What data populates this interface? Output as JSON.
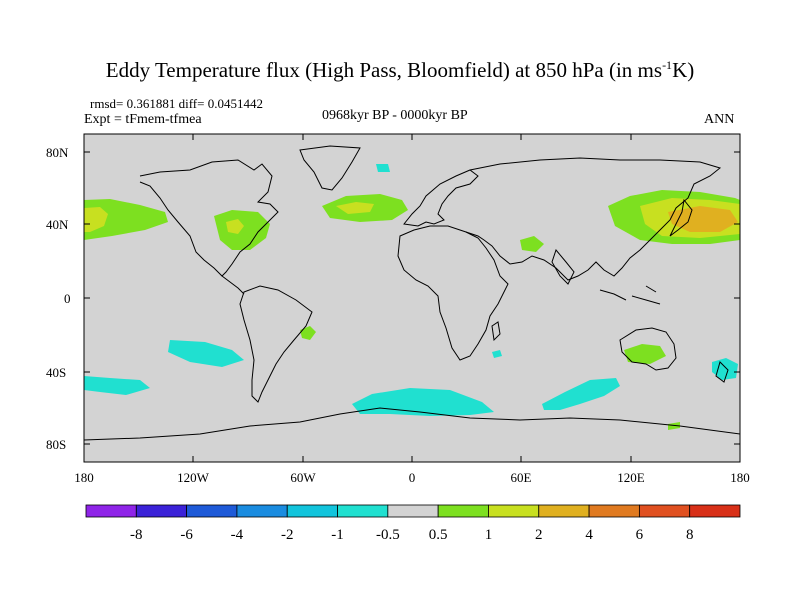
{
  "header": {
    "title_main": "Eddy Temperature flux (High Pass, Bloomfield) at 850 hPa (in ms",
    "title_sup": "-1",
    "title_end": "K)",
    "stats": "rmsd= 0.361881 diff= 0.0451442",
    "expt": "Expt = tFmem-tfmea",
    "period": "0968kyr BP - 0000kyr BP",
    "season": "ANN"
  },
  "map": {
    "land_color": "#d3d3d3",
    "coast_color": "#000000",
    "lat_ticks": [
      "80N",
      "40N",
      "0",
      "40S",
      "80S"
    ],
    "lon_ticks": [
      "180",
      "120W",
      "60W",
      "0",
      "60E",
      "120E",
      "180"
    ],
    "anomaly_regions": [
      {
        "name": "north-pacific-east",
        "level": "1"
      },
      {
        "name": "north-pacific-east-core",
        "level": "2"
      },
      {
        "name": "north-america-east",
        "level": "1"
      },
      {
        "name": "north-america-core",
        "level": "2"
      },
      {
        "name": "north-atlantic",
        "level": "1"
      },
      {
        "name": "north-atlantic-core",
        "level": "2"
      },
      {
        "name": "north-pacific-west",
        "level": "1"
      },
      {
        "name": "north-pacific-west-core",
        "level": "2"
      },
      {
        "name": "north-pacific-west-center",
        "level": "4"
      },
      {
        "name": "middle-east",
        "level": "1"
      },
      {
        "name": "greenland-sea",
        "level": "-1"
      },
      {
        "name": "south-pacific",
        "level": "-1"
      },
      {
        "name": "south-pacific-west",
        "level": "-1"
      },
      {
        "name": "south-atlantic",
        "level": "1"
      },
      {
        "name": "southern-ocean-atlantic",
        "level": "-1"
      },
      {
        "name": "southern-ocean-indian",
        "level": "-1"
      },
      {
        "name": "australia",
        "level": "1"
      },
      {
        "name": "madagascar-east",
        "level": "-1"
      },
      {
        "name": "tasman-sea",
        "level": "-1"
      },
      {
        "name": "antarctic-coast",
        "level": "1"
      }
    ]
  },
  "colorbar": {
    "labels": [
      "-8",
      "-6",
      "-4",
      "-2",
      "-1",
      "-0.5",
      "0.5",
      "1",
      "2",
      "4",
      "6",
      "8"
    ],
    "colors": [
      "#8f24e8",
      "#3b22d8",
      "#1e5ad8",
      "#1a8ce0",
      "#12c4dc",
      "#20e0d0",
      "#d3d3d3",
      "#7de020",
      "#c8e020",
      "#e0b020",
      "#e07a20",
      "#e05020",
      "#d83018"
    ]
  }
}
